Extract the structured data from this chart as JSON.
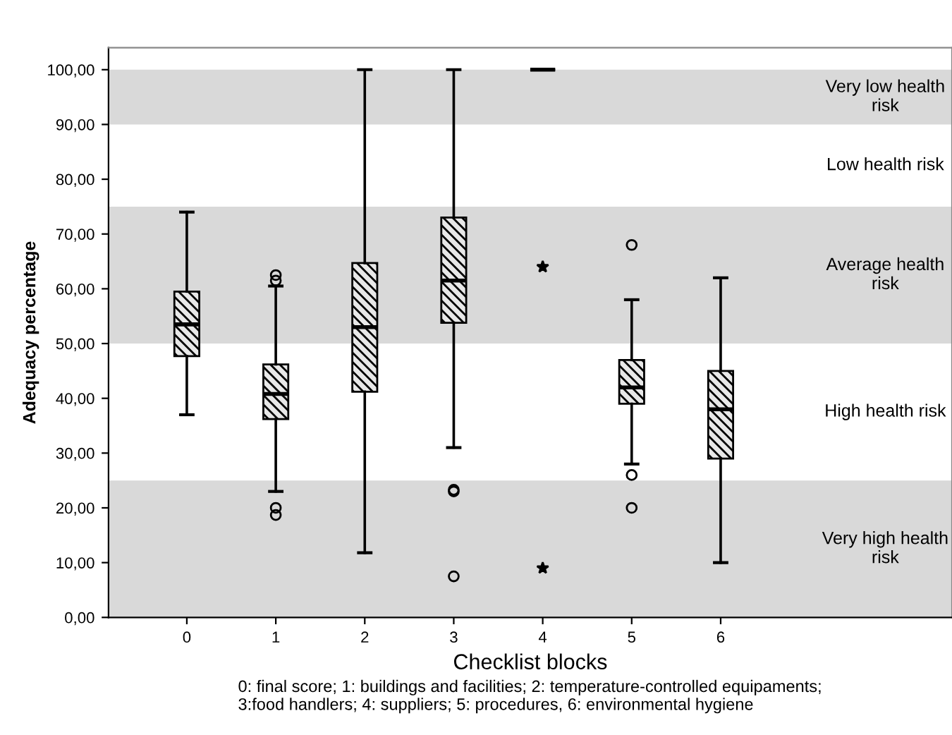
{
  "chart_data": {
    "type": "box",
    "xlabel": "Checklist blocks",
    "ylabel": "Adequacy percentage",
    "categories": [
      "0",
      "1",
      "2",
      "3",
      "4",
      "5",
      "6"
    ],
    "ylim": [
      0,
      104
    ],
    "yticks": [
      {
        "value": 0,
        "label": "0,00"
      },
      {
        "value": 10,
        "label": "10,00"
      },
      {
        "value": 20,
        "label": "20,00"
      },
      {
        "value": 30,
        "label": "30,00"
      },
      {
        "value": 40,
        "label": "40,00"
      },
      {
        "value": 50,
        "label": "50,00"
      },
      {
        "value": 60,
        "label": "60,00"
      },
      {
        "value": 70,
        "label": "70,00"
      },
      {
        "value": 80,
        "label": "80,00"
      },
      {
        "value": 90,
        "label": "90,00"
      },
      {
        "value": 100,
        "label": "100,00"
      }
    ],
    "grid": false,
    "bands": [
      {
        "axis": "y",
        "from": 90,
        "to": 100,
        "label": "Very low health risk",
        "color": "#d9d9d9"
      },
      {
        "axis": "y",
        "from": 50,
        "to": 75,
        "label": "Average health risk",
        "color": "#d9d9d9"
      },
      {
        "axis": "y",
        "from": 0,
        "to": 25,
        "label": "Very high health risk",
        "color": "#d9d9d9"
      }
    ],
    "series": [
      {
        "color": "#000000",
        "boxes": [
          {
            "low": 37,
            "q1": 47.7,
            "median": 53.5,
            "q3": 59.5,
            "high": 74
          },
          {
            "low": 23,
            "q1": 36.2,
            "median": 40.8,
            "q3": 46.2,
            "high": 60.5,
            "outliers": [
              62.5,
              61.5,
              20,
              18.7
            ]
          },
          {
            "low": 11.8,
            "q1": 41.2,
            "median": 53,
            "q3": 64.7,
            "high": 100
          },
          {
            "low": 31,
            "q1": 53.8,
            "median": 61.5,
            "q3": 73,
            "high": 100,
            "outliers": [
              23.3,
              23,
              7.5
            ]
          },
          {
            "low": 100,
            "q1": 100,
            "median": 100,
            "q3": 100,
            "high": 100
          },
          {
            "low": 28,
            "q1": 39,
            "median": 42,
            "q3": 47,
            "high": 58,
            "outliers": [
              68,
              26,
              20
            ]
          },
          {
            "low": 10,
            "q1": 29,
            "median": 38,
            "q3": 45,
            "high": 62
          }
        ]
      },
      {
        "type": "scatter",
        "x": [
          "4",
          "4"
        ],
        "values": [
          64,
          9
        ],
        "marker": "star",
        "color": "#000000"
      }
    ],
    "annotations": [
      "Low health risk",
      "High health risk",
      "0: final score; 1: buildings and facilities; 2: temperature-controlled equipaments;\n3:food handlers; 4: suppliers; 5: procedures, 6: environmental hygiene"
    ]
  }
}
